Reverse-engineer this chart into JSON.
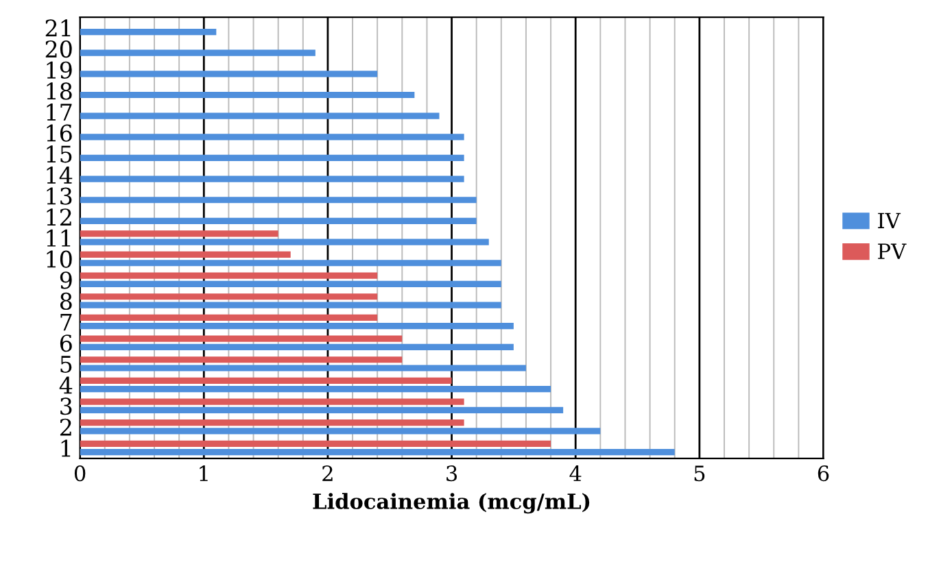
{
  "chart_data": {
    "type": "bar",
    "orientation": "horizontal",
    "xlabel": "Lidocainemia (mcg/mL)",
    "categories": [
      "21",
      "20",
      "19",
      "18",
      "17",
      "16",
      "15",
      "14",
      "13",
      "12",
      "11",
      "10",
      "9",
      "8",
      "7",
      "6",
      "5",
      "4",
      "3",
      "2",
      "1"
    ],
    "series": [
      {
        "name": "IV",
        "color": "#4f8fdc",
        "values": [
          1.1,
          1.9,
          2.4,
          2.7,
          2.9,
          3.1,
          3.1,
          3.1,
          3.2,
          3.2,
          3.3,
          3.4,
          3.4,
          3.4,
          3.5,
          3.5,
          3.6,
          3.8,
          3.9,
          4.2,
          4.8
        ]
      },
      {
        "name": "PV",
        "color": "#dc5a5a",
        "values": [
          null,
          null,
          null,
          null,
          null,
          null,
          null,
          null,
          null,
          null,
          1.6,
          1.7,
          2.4,
          2.4,
          2.4,
          2.6,
          2.6,
          3.0,
          3.1,
          3.1,
          3.8
        ]
      }
    ],
    "xlim": [
      0,
      6
    ],
    "xticks": [
      0,
      {
        "value": 0.2,
        "label": null
      },
      {
        "value": 0.4,
        "label": null
      },
      {
        "value": 0.6,
        "label": null
      },
      {
        "value": 0.8,
        "label": null
      },
      1,
      {
        "value": 1.2,
        "label": null
      },
      {
        "value": 1.4,
        "label": null
      },
      {
        "value": 1.6,
        "label": null
      },
      {
        "value": 1.8,
        "label": null
      },
      2,
      {
        "value": 2.2,
        "label": null
      },
      {
        "value": 2.4,
        "label": null
      },
      {
        "value": 2.6,
        "label": null
      },
      {
        "value": 2.8,
        "label": null
      },
      3,
      {
        "value": 3.2,
        "label": null
      },
      {
        "value": 3.4,
        "label": null
      },
      {
        "value": 3.6,
        "label": null
      },
      {
        "value": 3.8,
        "label": null
      },
      4,
      {
        "value": 4.2,
        "label": null
      },
      {
        "value": 4.4,
        "label": null
      },
      {
        "value": 4.6,
        "label": null
      },
      {
        "value": 4.8,
        "label": null
      },
      5,
      {
        "value": 5.2,
        "label": null
      },
      {
        "value": 5.4,
        "label": null
      },
      {
        "value": 5.6,
        "label": null
      },
      {
        "value": 5.8,
        "label": null
      },
      6
    ],
    "grid": "x",
    "legend": "right"
  }
}
